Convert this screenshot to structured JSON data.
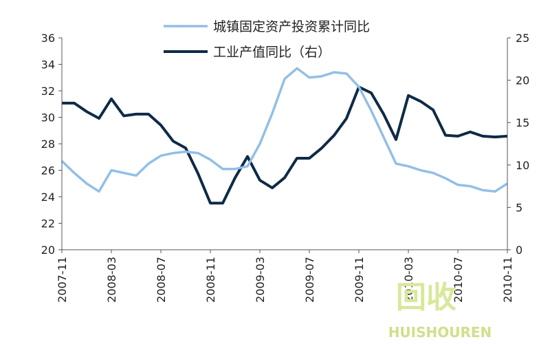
{
  "chart_data": {
    "type": "line",
    "categories": [
      "2007-11",
      null,
      null,
      null,
      "2008-03",
      null,
      null,
      null,
      "2008-07",
      null,
      null,
      null,
      "2008-11",
      null,
      null,
      null,
      "2009-03",
      null,
      null,
      null,
      "2009-07",
      null,
      null,
      null,
      "2009-11",
      null,
      null,
      null,
      "2010-03",
      null,
      null,
      null,
      "2010-07",
      null,
      null,
      null,
      "2010-11"
    ],
    "series": [
      {
        "name": "城镇固定资产投资累计同比",
        "color": "#92bfe6",
        "axis": "y",
        "values": [
          26.7,
          25.8,
          25.0,
          24.4,
          26.0,
          25.8,
          25.6,
          26.5,
          27.1,
          27.3,
          27.4,
          27.3,
          26.8,
          26.1,
          26.1,
          26.3,
          28.0,
          30.3,
          32.9,
          33.7,
          33.0,
          33.1,
          33.4,
          33.3,
          32.3,
          30.5,
          28.5,
          26.5,
          26.3,
          26.0,
          25.8,
          25.4,
          24.9,
          24.8,
          24.5,
          24.4,
          25.0
        ]
      },
      {
        "name": "工业产值同比（右）",
        "color": "#0e2a47",
        "axis": "y2",
        "values": [
          17.3,
          17.3,
          16.3,
          15.5,
          17.8,
          15.8,
          16.0,
          16.0,
          14.7,
          12.8,
          12.0,
          9.0,
          5.5,
          5.5,
          8.5,
          11.0,
          8.2,
          7.3,
          8.5,
          10.8,
          10.8,
          12.0,
          13.5,
          15.5,
          19.2,
          18.5,
          16.0,
          13.0,
          18.2,
          17.5,
          16.5,
          13.5,
          13.4,
          13.9,
          13.4,
          13.3,
          13.4
        ]
      }
    ],
    "ylim": [
      20,
      36
    ],
    "yticks": [
      20,
      22,
      24,
      26,
      28,
      30,
      32,
      34,
      36
    ],
    "y2lim": [
      0,
      25
    ],
    "y2ticks": [
      0,
      5,
      10,
      15,
      20,
      25
    ],
    "grid": false,
    "watermark": [
      "回收",
      "HUISHOUREN"
    ]
  }
}
